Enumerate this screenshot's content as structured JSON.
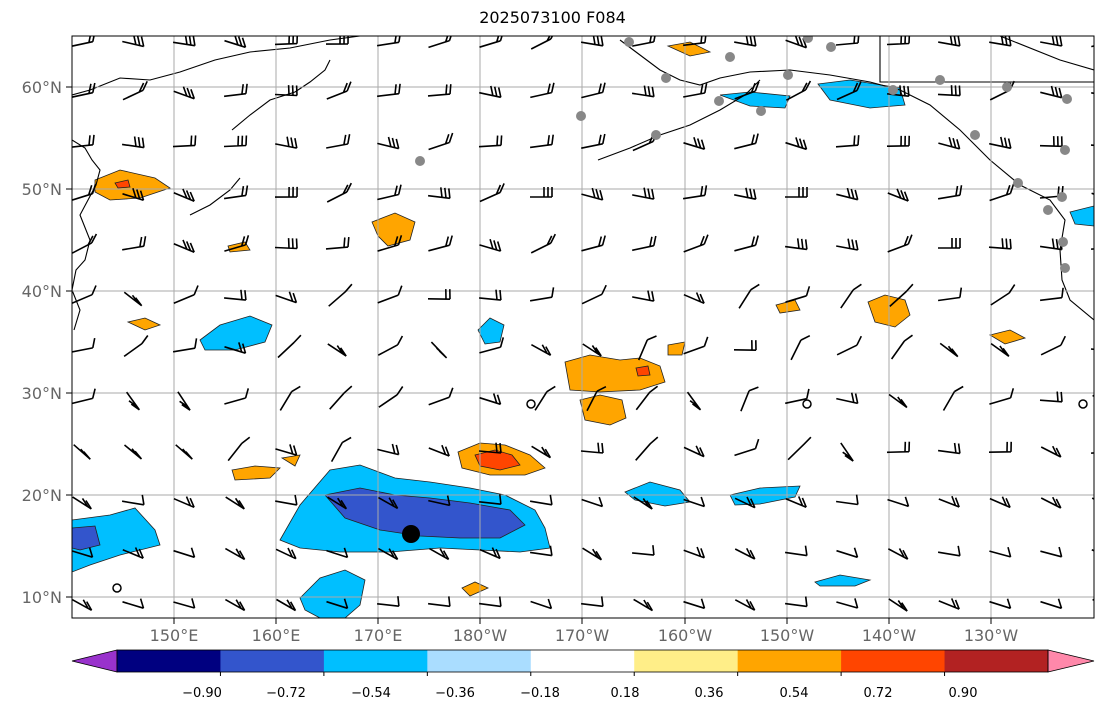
{
  "title": "2025073100 F084",
  "map": {
    "lat_labels": [
      "60°N",
      "50°N",
      "40°N",
      "30°N",
      "20°N",
      "10°N"
    ],
    "lon_labels": [
      "150°E",
      "160°E",
      "170°E",
      "180°W",
      "170°W",
      "160°W",
      "150°W",
      "140°W",
      "130°W"
    ],
    "grid": true
  },
  "colorbar": {
    "ticks": [
      "−0.90",
      "−0.72",
      "−0.54",
      "−0.36",
      "−0.18",
      "0.18",
      "0.36",
      "0.54",
      "0.72",
      "0.90"
    ],
    "colors": [
      "#9932cc",
      "#000080",
      "#3355cc",
      "#00bfff",
      "#aaddff",
      "#ffffff",
      "#ffee88",
      "#ffa500",
      "#ff4500",
      "#b22222",
      "#ff88aa"
    ]
  }
}
